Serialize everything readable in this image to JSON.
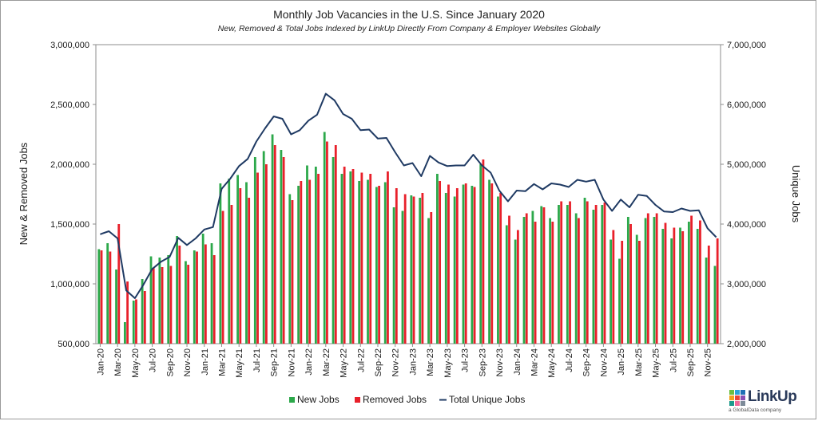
{
  "chart_data": {
    "type": "bar-line combo",
    "title": "Monthly Job Vacancies in the U.S. Since January 2020",
    "subtitle": "New, Removed & Total Jobs Indexed by LinkUp Directly From Company & Employer Websites Globally",
    "ylabel_left": "New & Removed Jobs",
    "ylabel_right": "Unique Jobs",
    "ylim_left": [
      500000,
      3000000
    ],
    "ylim_right": [
      2000000,
      7000000
    ],
    "yticks_left": [
      "500,000",
      "1,000,000",
      "1,500,000",
      "2,000,000",
      "2,500,000",
      "3,000,000"
    ],
    "yticks_right": [
      "2,000,000",
      "3,000,000",
      "4,000,000",
      "5,000,000",
      "6,000,000",
      "7,000,000"
    ],
    "grid": false,
    "legend_position": "bottom-center",
    "months": [
      "Jan-20",
      "Feb-20",
      "Mar-20",
      "Apr-20",
      "May-20",
      "Jun-20",
      "Jul-20",
      "Aug-20",
      "Sep-20",
      "Oct-20",
      "Nov-20",
      "Dec-20",
      "Jan-21",
      "Feb-21",
      "Mar-21",
      "Apr-21",
      "May-21",
      "Jun-21",
      "Jul-21",
      "Aug-21",
      "Sep-21",
      "Oct-21",
      "Nov-21",
      "Dec-21",
      "Jan-22",
      "Feb-22",
      "Mar-22",
      "Apr-22",
      "May-22",
      "Jun-22",
      "Jul-22",
      "Aug-22",
      "Sep-22",
      "Oct-22",
      "Nov-22",
      "Dec-22",
      "Jan-23",
      "Feb-23",
      "Mar-23",
      "Apr-23",
      "May-23",
      "Jun-23",
      "Jul-23",
      "Aug-23",
      "Sep-23",
      "Oct-23",
      "Nov-23",
      "Dec-23",
      "Jan-24",
      "Feb-24",
      "Mar-24",
      "Apr-24",
      "May-24",
      "Jun-24",
      "Jul-24",
      "Aug-24",
      "Sep-24",
      "Oct-24",
      "Nov-24",
      "Dec-24",
      "Jan-25",
      "Feb-25",
      "Mar-25",
      "Apr-25",
      "May-25",
      "Jun-25",
      "Jul-25",
      "Aug-25",
      "Sep-25",
      "Oct-25",
      "Nov-25",
      "Dec-25"
    ],
    "x_tick_labels": [
      "Jan-20",
      "Mar-20",
      "May-20",
      "Jul-20",
      "Sep-20",
      "Nov-20",
      "Jan-21",
      "Mar-21",
      "May-21",
      "Jul-21",
      "Sep-21",
      "Nov-21",
      "Jan-22",
      "Mar-22",
      "May-22",
      "Jul-22",
      "Sep-22",
      "Nov-22",
      "Jan-23",
      "Mar-23",
      "May-23",
      "Jul-23",
      "Sep-23",
      "Nov-23",
      "Jan-24",
      "Mar-24",
      "May-24",
      "Jul-24",
      "Sep-24",
      "Nov-24",
      "Jan-25",
      "Mar-25",
      "May-25",
      "Jul-25",
      "Sep-25",
      "Nov-25"
    ],
    "series": [
      {
        "name": "New Jobs",
        "axis": "left",
        "color": "#2ca84a",
        "values": [
          1290000,
          1340000,
          1120000,
          680000,
          860000,
          1040000,
          1230000,
          1220000,
          1240000,
          1400000,
          1190000,
          1280000,
          1420000,
          1340000,
          1840000,
          1880000,
          1910000,
          1850000,
          2060000,
          2110000,
          2250000,
          2120000,
          1750000,
          1820000,
          1990000,
          1980000,
          2270000,
          2060000,
          1920000,
          1940000,
          1860000,
          1870000,
          1810000,
          1850000,
          1640000,
          1610000,
          1740000,
          1720000,
          1550000,
          1920000,
          1760000,
          1730000,
          1830000,
          1820000,
          2000000,
          1870000,
          1730000,
          1490000,
          1370000,
          1560000,
          1610000,
          1650000,
          1550000,
          1660000,
          1660000,
          1590000,
          1720000,
          1620000,
          1660000,
          1370000,
          1210000,
          1560000,
          1410000,
          1550000,
          1560000,
          1460000,
          1380000,
          1470000,
          1520000,
          1460000,
          1220000,
          1150000
        ]
      },
      {
        "name": "Removed Jobs",
        "axis": "left",
        "color": "#e8202a",
        "values": [
          1280000,
          1270000,
          1500000,
          1020000,
          870000,
          940000,
          1130000,
          1140000,
          1150000,
          1320000,
          1160000,
          1270000,
          1330000,
          1240000,
          1610000,
          1660000,
          1800000,
          1720000,
          1930000,
          2000000,
          2160000,
          2060000,
          1700000,
          1860000,
          1870000,
          1920000,
          2190000,
          2160000,
          1980000,
          1960000,
          1930000,
          1920000,
          1820000,
          1940000,
          1800000,
          1750000,
          1730000,
          1760000,
          1600000,
          1860000,
          1830000,
          1800000,
          1840000,
          1810000,
          2040000,
          1840000,
          1760000,
          1570000,
          1450000,
          1590000,
          1520000,
          1640000,
          1520000,
          1690000,
          1690000,
          1550000,
          1690000,
          1660000,
          1680000,
          1450000,
          1360000,
          1500000,
          1360000,
          1590000,
          1590000,
          1510000,
          1470000,
          1440000,
          1570000,
          1530000,
          1320000,
          1380000
        ]
      },
      {
        "name": "Total Unique Jobs",
        "axis": "right",
        "color": "#1f3a63",
        "values": [
          3830000,
          3880000,
          3760000,
          2890000,
          2760000,
          2990000,
          3250000,
          3370000,
          3450000,
          3770000,
          3650000,
          3760000,
          3910000,
          3950000,
          4590000,
          4760000,
          4970000,
          5090000,
          5380000,
          5600000,
          5800000,
          5760000,
          5500000,
          5570000,
          5730000,
          5830000,
          6180000,
          6070000,
          5840000,
          5760000,
          5570000,
          5580000,
          5430000,
          5440000,
          5200000,
          4980000,
          5020000,
          4800000,
          5140000,
          5030000,
          4970000,
          4980000,
          4980000,
          5160000,
          4980000,
          4860000,
          4560000,
          4380000,
          4560000,
          4550000,
          4670000,
          4580000,
          4680000,
          4660000,
          4620000,
          4740000,
          4710000,
          4740000,
          4410000,
          4220000,
          4410000,
          4280000,
          4490000,
          4470000,
          4320000,
          4210000,
          4200000,
          4260000,
          4220000,
          4230000,
          3930000,
          3780000
        ]
      }
    ]
  },
  "logo": {
    "name": "LinkUp",
    "tagline": "a GlobalData company"
  }
}
